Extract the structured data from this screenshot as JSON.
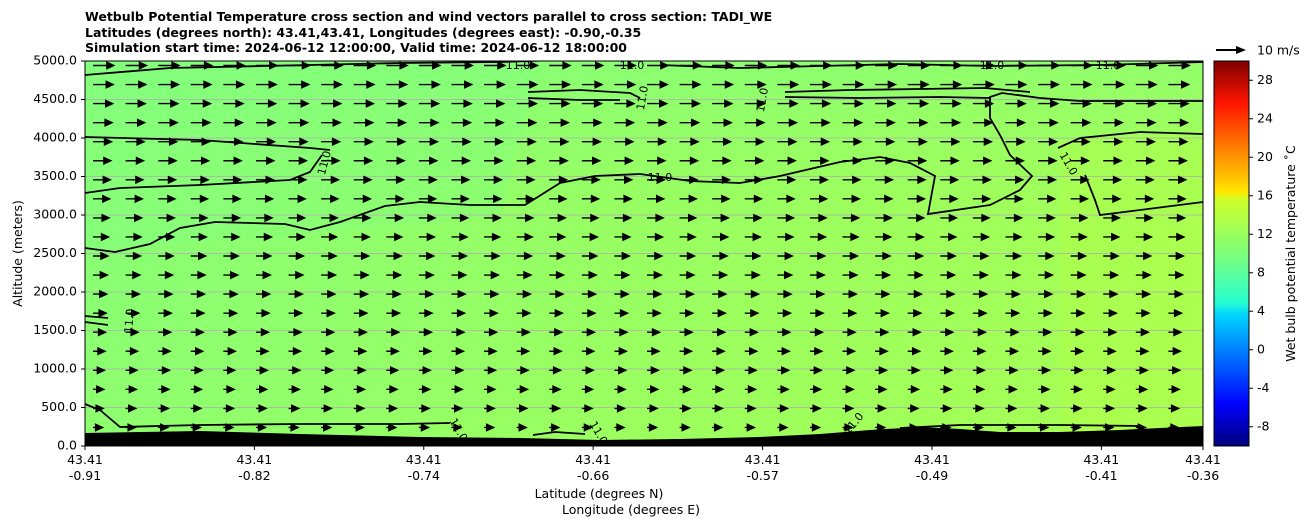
{
  "chart_data": {
    "type": "heatmap",
    "title": "Wetbulb Potential Temperature cross section and wind vectors parallel to cross section: TADI_WE",
    "subtitle_lines": [
      "Latitudes (degrees north): 43.41,43.41, Longitudes (degrees east): -0.90,-0.35",
      "Simulation start time: 2024-06-12 12:00:00, Valid time: 2024-06-12 18:00:00"
    ],
    "ylabel": "Altitude (meters)",
    "xlabel_line1": "Latitude (degrees N)",
    "xlabel_line2": "Longitude (degrees E)",
    "ylim": [
      0,
      5000
    ],
    "y_ticks": [
      "0.0",
      "500.0",
      "1000.0",
      "1500.0",
      "2000.0",
      "2500.0",
      "3000.0",
      "3500.0",
      "4000.0",
      "4500.0",
      "5000.0"
    ],
    "y_tick_values": [
      0,
      500,
      1000,
      1500,
      2000,
      2500,
      3000,
      3500,
      4000,
      4500,
      5000
    ],
    "x_ticks": [
      {
        "lat": "43.41",
        "lon": "-0.91",
        "frac": 0.0
      },
      {
        "lat": "43.41",
        "lon": "-0.82",
        "frac": 0.1515
      },
      {
        "lat": "43.41",
        "lon": "-0.74",
        "frac": 0.303
      },
      {
        "lat": "43.41",
        "lon": "-0.66",
        "frac": 0.4545
      },
      {
        "lat": "43.41",
        "lon": "-0.57",
        "frac": 0.6061
      },
      {
        "lat": "43.41",
        "lon": "-0.49",
        "frac": 0.7576
      },
      {
        "lat": "43.41",
        "lon": "-0.41",
        "frac": 0.9091
      },
      {
        "lat": "43.41",
        "lon": "-0.36",
        "frac": 1.0
      }
    ],
    "grid": "horizontal",
    "colorbar": {
      "label": "Wet bulb potential temperature $^\\circ$C",
      "label_display": "Wet bulb potential temperature ˚C",
      "range": [
        -10,
        30
      ],
      "ticks": [
        "-8",
        "-4",
        "0",
        "4",
        "8",
        "12",
        "16",
        "20",
        "24",
        "28"
      ],
      "tick_values": [
        -8,
        -4,
        0,
        4,
        8,
        12,
        16,
        20,
        24,
        28
      ]
    },
    "contour_level": "11.0",
    "contour_label_texts": [
      "11.0",
      "11.0",
      "11.0",
      "11.0",
      "11.0",
      "11.0",
      "11.0",
      "11.0",
      "11.0",
      "11.0",
      "11.0",
      "11.0",
      "11.0"
    ],
    "quiver_key": "10 m/s",
    "field_colors": {
      "cool": "#82ff7a",
      "warm": "#b0ff48",
      "mid": "#9cff5c"
    },
    "terrain_color": "#000000"
  }
}
